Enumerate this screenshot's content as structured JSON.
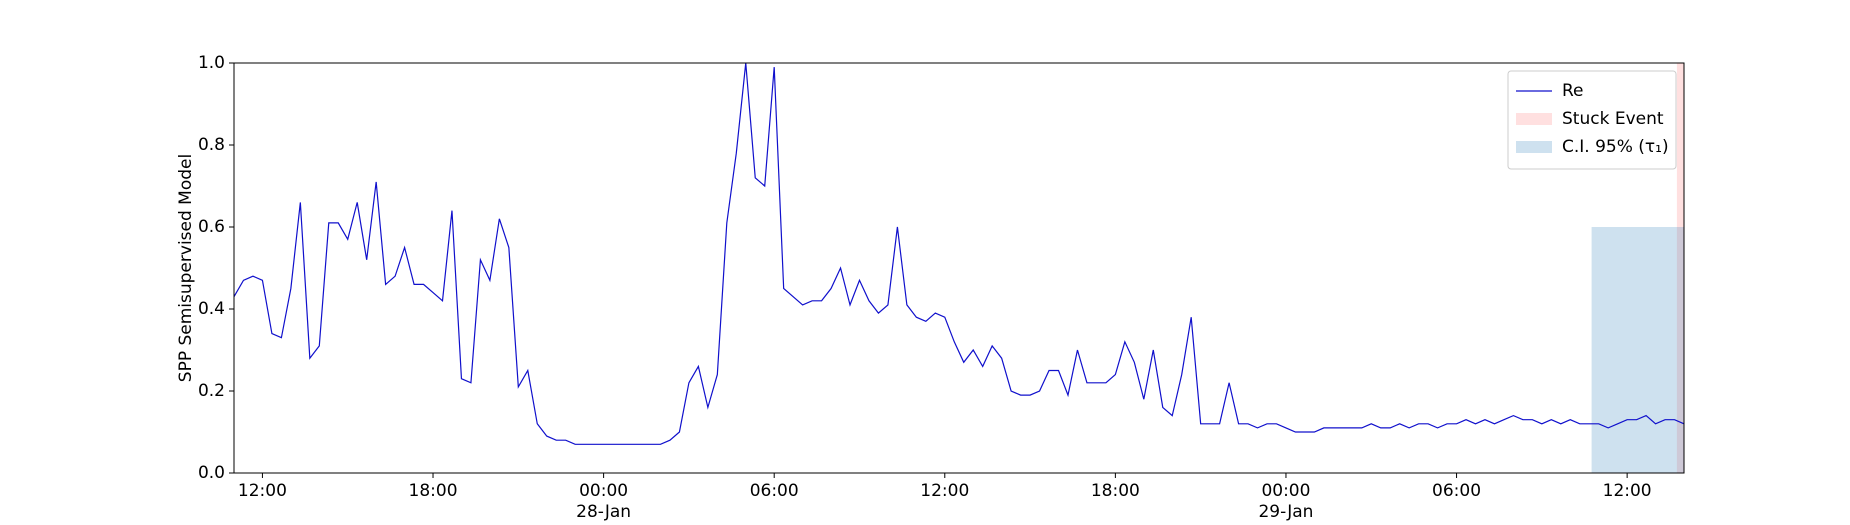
{
  "chart_data": {
    "type": "line",
    "ylabel": "SPP Semisupervised Model",
    "x": [
      "1900-01-27 11:00",
      "1900-01-27 11:20",
      "1900-01-27 11:40",
      "1900-01-27 12:00",
      "1900-01-27 12:20",
      "1900-01-27 12:40",
      "1900-01-27 13:00",
      "1900-01-27 13:20",
      "1900-01-27 13:40",
      "1900-01-27 14:00",
      "1900-01-27 14:20",
      "1900-01-27 14:40",
      "1900-01-27 15:00",
      "1900-01-27 15:20",
      "1900-01-27 15:40",
      "1900-01-27 16:00",
      "1900-01-27 16:20",
      "1900-01-27 16:40",
      "1900-01-27 17:00",
      "1900-01-27 17:20",
      "1900-01-27 17:40",
      "1900-01-27 18:00",
      "1900-01-27 18:20",
      "1900-01-27 18:40",
      "1900-01-27 19:00",
      "1900-01-27 19:20",
      "1900-01-27 19:40",
      "1900-01-27 20:00",
      "1900-01-27 20:20",
      "1900-01-27 20:40",
      "1900-01-27 21:00",
      "1900-01-27 21:20",
      "1900-01-27 21:40",
      "1900-01-27 22:00",
      "1900-01-27 22:20",
      "1900-01-27 22:40",
      "1900-01-27 23:00",
      "1900-01-27 23:20",
      "1900-01-27 23:40",
      "1900-01-28 00:00",
      "1900-01-28 00:20",
      "1900-01-28 00:40",
      "1900-01-28 01:00",
      "1900-01-28 01:20",
      "1900-01-28 01:40",
      "1900-01-28 02:00",
      "1900-01-28 02:20",
      "1900-01-28 02:40",
      "1900-01-28 03:00",
      "1900-01-28 03:20",
      "1900-01-28 03:40",
      "1900-01-28 04:00",
      "1900-01-28 04:20",
      "1900-01-28 04:40",
      "1900-01-28 05:00",
      "1900-01-28 05:20",
      "1900-01-28 05:40",
      "1900-01-28 06:00",
      "1900-01-28 06:20",
      "1900-01-28 06:40",
      "1900-01-28 07:00",
      "1900-01-28 07:20",
      "1900-01-28 07:40",
      "1900-01-28 08:00",
      "1900-01-28 08:20",
      "1900-01-28 08:40",
      "1900-01-28 09:00",
      "1900-01-28 09:20",
      "1900-01-28 09:40",
      "1900-01-28 10:00",
      "1900-01-28 10:20",
      "1900-01-28 10:40",
      "1900-01-28 11:00",
      "1900-01-28 11:20",
      "1900-01-28 11:40",
      "1900-01-28 12:00",
      "1900-01-28 12:20",
      "1900-01-28 12:40",
      "1900-01-28 13:00",
      "1900-01-28 13:20",
      "1900-01-28 13:40",
      "1900-01-28 14:00",
      "1900-01-28 14:20",
      "1900-01-28 14:40",
      "1900-01-28 15:00",
      "1900-01-28 15:20",
      "1900-01-28 15:40",
      "1900-01-28 16:00",
      "1900-01-28 16:20",
      "1900-01-28 16:40",
      "1900-01-28 17:00",
      "1900-01-28 17:20",
      "1900-01-28 17:40",
      "1900-01-28 18:00",
      "1900-01-28 18:20",
      "1900-01-28 18:40",
      "1900-01-28 19:00",
      "1900-01-28 19:20",
      "1900-01-28 19:40",
      "1900-01-28 20:00",
      "1900-01-28 20:20",
      "1900-01-28 20:40",
      "1900-01-28 21:00",
      "1900-01-28 21:20",
      "1900-01-28 21:40",
      "1900-01-28 22:00",
      "1900-01-28 22:20",
      "1900-01-28 22:40",
      "1900-01-28 23:00",
      "1900-01-28 23:20",
      "1900-01-28 23:40",
      "1900-01-29 00:00",
      "1900-01-29 00:20",
      "1900-01-29 00:40",
      "1900-01-29 01:00",
      "1900-01-29 01:20",
      "1900-01-29 01:40",
      "1900-01-29 02:00",
      "1900-01-29 02:20",
      "1900-01-29 02:40",
      "1900-01-29 03:00",
      "1900-01-29 03:20",
      "1900-01-29 03:40",
      "1900-01-29 04:00",
      "1900-01-29 04:20",
      "1900-01-29 04:40",
      "1900-01-29 05:00",
      "1900-01-29 05:20",
      "1900-01-29 05:40",
      "1900-01-29 06:00",
      "1900-01-29 06:20",
      "1900-01-29 06:40",
      "1900-01-29 07:00",
      "1900-01-29 07:20",
      "1900-01-29 07:40",
      "1900-01-29 08:00",
      "1900-01-29 08:20",
      "1900-01-29 08:40",
      "1900-01-29 09:00",
      "1900-01-29 09:20",
      "1900-01-29 09:40",
      "1900-01-29 10:00",
      "1900-01-29 10:20",
      "1900-01-29 10:40",
      "1900-01-29 11:00",
      "1900-01-29 11:20",
      "1900-01-29 11:40",
      "1900-01-29 12:00",
      "1900-01-29 12:20",
      "1900-01-29 12:40",
      "1900-01-29 13:00",
      "1900-01-29 13:20",
      "1900-01-29 13:40",
      "1900-01-29 14:00"
    ],
    "series": [
      {
        "name": "Re",
        "color": "#1010cc",
        "values": [
          0.43,
          0.47,
          0.48,
          0.47,
          0.34,
          0.33,
          0.45,
          0.66,
          0.28,
          0.31,
          0.61,
          0.61,
          0.57,
          0.66,
          0.52,
          0.71,
          0.46,
          0.48,
          0.55,
          0.46,
          0.46,
          0.44,
          0.42,
          0.64,
          0.23,
          0.22,
          0.52,
          0.47,
          0.62,
          0.55,
          0.21,
          0.25,
          0.12,
          0.09,
          0.08,
          0.08,
          0.07,
          0.07,
          0.07,
          0.07,
          0.07,
          0.07,
          0.07,
          0.07,
          0.07,
          0.07,
          0.08,
          0.1,
          0.22,
          0.26,
          0.16,
          0.24,
          0.61,
          0.78,
          1.0,
          0.72,
          0.7,
          0.99,
          0.45,
          0.43,
          0.41,
          0.42,
          0.42,
          0.45,
          0.5,
          0.41,
          0.47,
          0.42,
          0.39,
          0.41,
          0.6,
          0.41,
          0.38,
          0.37,
          0.39,
          0.38,
          0.32,
          0.27,
          0.3,
          0.26,
          0.31,
          0.28,
          0.2,
          0.19,
          0.19,
          0.2,
          0.25,
          0.25,
          0.19,
          0.3,
          0.22,
          0.22,
          0.22,
          0.24,
          0.32,
          0.27,
          0.18,
          0.3,
          0.16,
          0.14,
          0.24,
          0.38,
          0.12,
          0.12,
          0.12,
          0.22,
          0.12,
          0.12,
          0.11,
          0.12,
          0.12,
          0.11,
          0.1,
          0.1,
          0.1,
          0.11,
          0.11,
          0.11,
          0.11,
          0.11,
          0.12,
          0.11,
          0.11,
          0.12,
          0.11,
          0.12,
          0.12,
          0.11,
          0.12,
          0.12,
          0.13,
          0.12,
          0.13,
          0.12,
          0.13,
          0.14,
          0.13,
          0.13,
          0.12,
          0.13,
          0.12,
          0.13,
          0.12,
          0.12,
          0.12,
          0.11,
          0.12,
          0.13,
          0.13,
          0.14,
          0.12,
          0.13,
          0.13,
          0.12
        ]
      }
    ],
    "spans": [
      {
        "name": "Stuck Event",
        "color": "#ff0000",
        "alpha": 0.12,
        "start": "1900-01-29 13:45",
        "end": "1900-01-29 14:00"
      },
      {
        "name": "C.I. 95% (τ₁)",
        "color": "#1f77b4",
        "alpha": 0.22,
        "start": "1900-01-29 10:45",
        "end": "1900-01-29 14:00",
        "y": [
          0,
          0.6
        ]
      }
    ],
    "xlim": [
      "1900-01-27 11:00",
      "1900-01-29 14:00"
    ],
    "xticks": [
      {
        "value": "1900-01-27 12:00",
        "label": "12:00"
      },
      {
        "value": "1900-01-27 18:00",
        "label": "18:00"
      },
      {
        "value": "1900-01-28 00:00",
        "label": "00:00\n28-Jan\n1900"
      },
      {
        "value": "1900-01-28 06:00",
        "label": "06:00"
      },
      {
        "value": "1900-01-28 12:00",
        "label": "12:00"
      },
      {
        "value": "1900-01-28 18:00",
        "label": "18:00"
      },
      {
        "value": "1900-01-29 00:00",
        "label": "00:00\n29-Jan"
      },
      {
        "value": "1900-01-29 06:00",
        "label": "06:00"
      },
      {
        "value": "1900-01-29 12:00",
        "label": "12:00"
      }
    ],
    "ylim": [
      0,
      1
    ],
    "yticks": [
      {
        "value": 0,
        "label": "0.0"
      },
      0.2,
      0.4,
      0.6,
      0.8,
      {
        "value": 1,
        "label": "1.0"
      }
    ],
    "grid": false,
    "legend": "upper right"
  }
}
